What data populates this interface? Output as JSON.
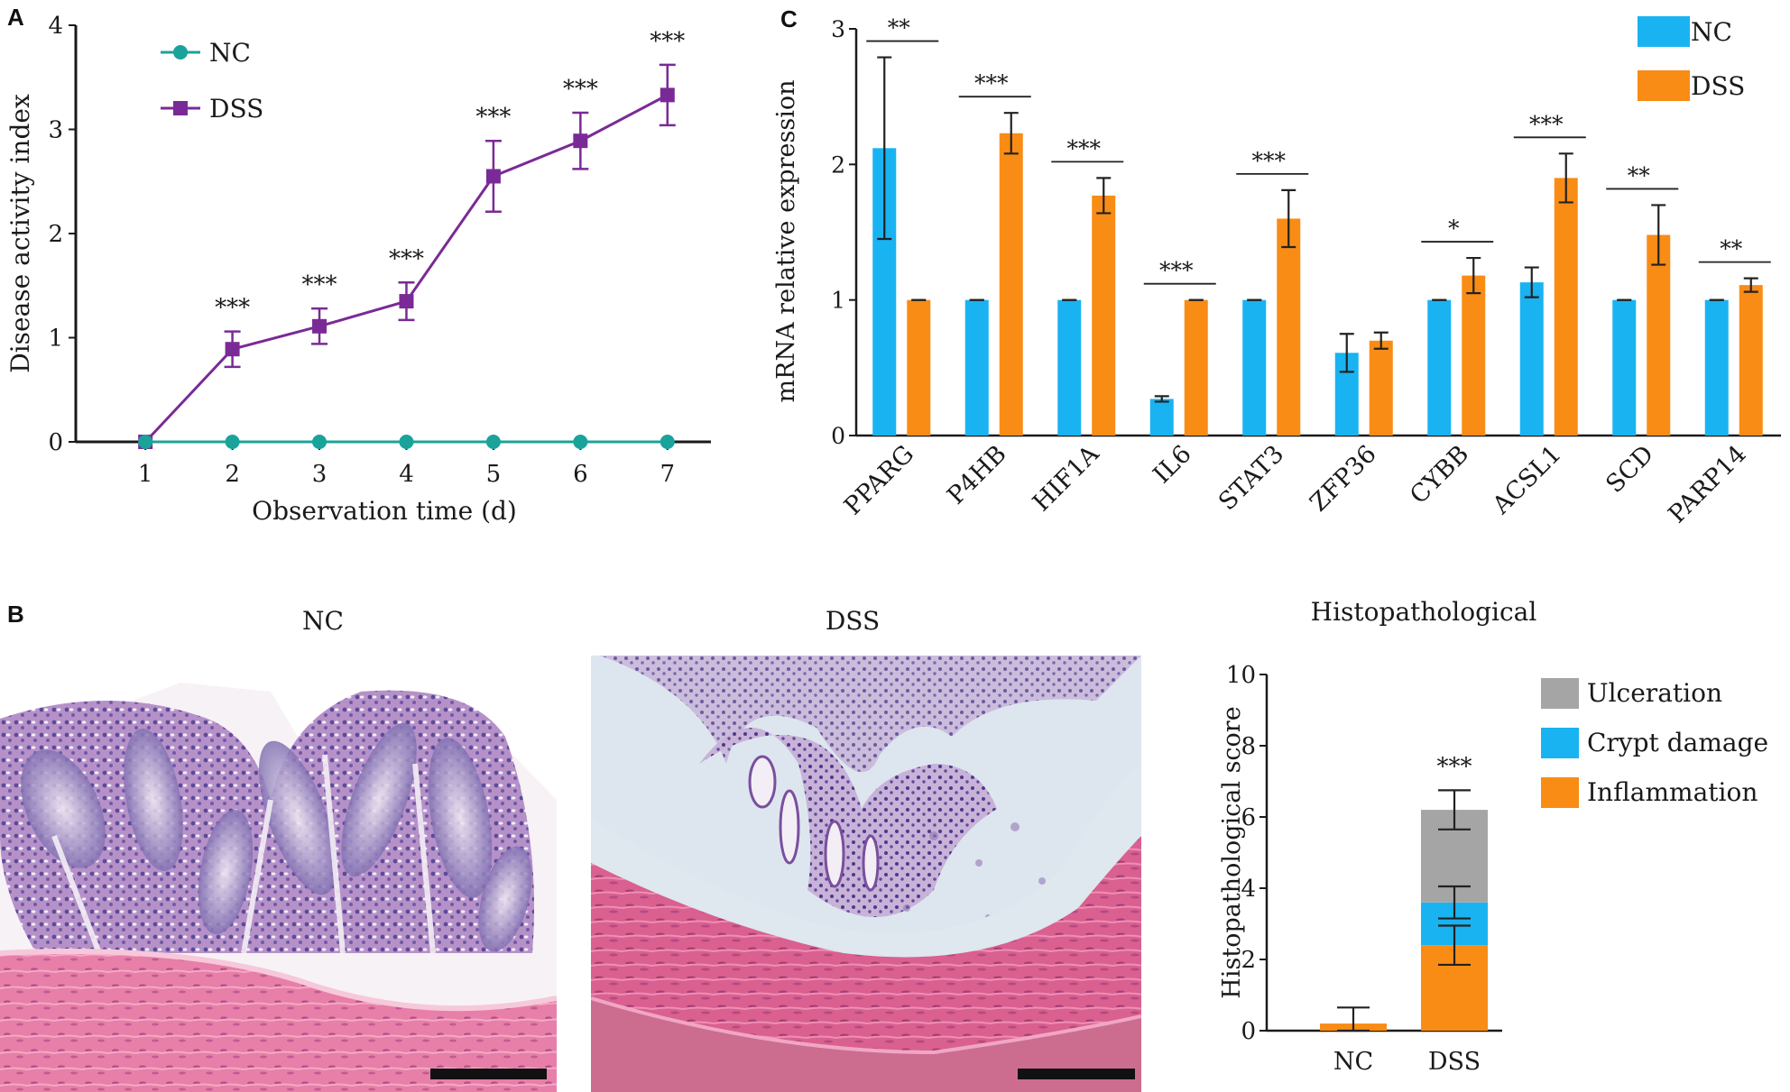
{
  "panels": {
    "a": "A",
    "b": "B",
    "c": "C"
  },
  "colors": {
    "nc_line": "#1aa39a",
    "dss_line": "#7a2a96",
    "nc_bar": "#19b3f1",
    "dss_bar": "#f98c15",
    "ulceration": "#a5a5a5",
    "crypt_damage": "#19b3f1",
    "inflammation": "#f98c15",
    "axis": "#1a1a1a"
  },
  "histology": {
    "nc_title": "NC",
    "dss_title": "DSS",
    "nc_image": "H&E-stained colon section, normal crypt architecture",
    "dss_image": "H&E-stained colon section, crypt loss and inflammatory infiltrate"
  },
  "chart_data": [
    {
      "id": "A",
      "type": "line",
      "xlabel": "Observation time (d)",
      "ylabel": "Disease activity index",
      "x": [
        1,
        2,
        3,
        4,
        5,
        6,
        7
      ],
      "xlim": [
        0.2,
        7.5
      ],
      "ylim": [
        0,
        4
      ],
      "yticks": [
        0,
        1,
        2,
        3,
        4
      ],
      "legend_position": "top-left",
      "series": [
        {
          "name": "NC",
          "marker": "circle",
          "values": [
            0,
            0,
            0,
            0,
            0,
            0,
            0
          ],
          "errors": [
            0,
            0,
            0,
            0,
            0,
            0,
            0
          ]
        },
        {
          "name": "DSS",
          "marker": "square",
          "values": [
            0,
            0.89,
            1.11,
            1.35,
            2.55,
            2.89,
            3.33
          ],
          "errors": [
            0,
            0.17,
            0.17,
            0.18,
            0.34,
            0.27,
            0.29
          ]
        }
      ],
      "significance": [
        "",
        "***",
        "***",
        "***",
        "***",
        "***",
        "***"
      ]
    },
    {
      "id": "C",
      "type": "bar",
      "ylabel": "mRNA relative expression",
      "categories": [
        "PPARG",
        "P4HB",
        "HIF1A",
        "IL6",
        "STAT3",
        "ZFP36",
        "CYBB",
        "ACSL1",
        "SCD",
        "PARP14"
      ],
      "ylim": [
        0,
        3
      ],
      "yticks": [
        0,
        1,
        2,
        3
      ],
      "legend_position": "top-right",
      "series": [
        {
          "name": "NC",
          "values": [
            2.12,
            1.0,
            1.0,
            0.27,
            1.0,
            0.61,
            1.0,
            1.13,
            1.0,
            1.0
          ],
          "errors": [
            0.67,
            0.0,
            0.0,
            0.02,
            0.0,
            0.14,
            0.0,
            0.11,
            0.0,
            0.0
          ]
        },
        {
          "name": "DSS",
          "values": [
            1.0,
            2.23,
            1.77,
            1.0,
            1.6,
            0.7,
            1.18,
            1.9,
            1.48,
            1.11
          ],
          "errors": [
            0.0,
            0.15,
            0.13,
            0.0,
            0.21,
            0.06,
            0.13,
            0.18,
            0.22,
            0.05
          ]
        }
      ],
      "significance": [
        "**",
        "***",
        "***",
        "***",
        "***",
        "",
        "*",
        "***",
        "**",
        "**"
      ]
    },
    {
      "id": "B-score",
      "type": "bar",
      "title": "Histopathological",
      "ylabel": "Histopathological score",
      "categories": [
        "NC",
        "DSS"
      ],
      "ylim": [
        0,
        10
      ],
      "yticks": [
        0,
        2,
        4,
        6,
        8,
        10
      ],
      "stacked": true,
      "legend_position": "top-right",
      "series": [
        {
          "name": "Inflammation",
          "values": [
            0.2,
            2.4
          ],
          "errors": [
            0.45,
            0.55
          ]
        },
        {
          "name": "Crypt damage",
          "values": [
            0.0,
            1.2
          ],
          "errors": [
            0.0,
            0.45
          ]
        },
        {
          "name": "Ulceration",
          "values": [
            0.0,
            2.6
          ],
          "errors": [
            0.0,
            0.55
          ]
        }
      ],
      "significance": [
        "",
        "***"
      ]
    }
  ]
}
